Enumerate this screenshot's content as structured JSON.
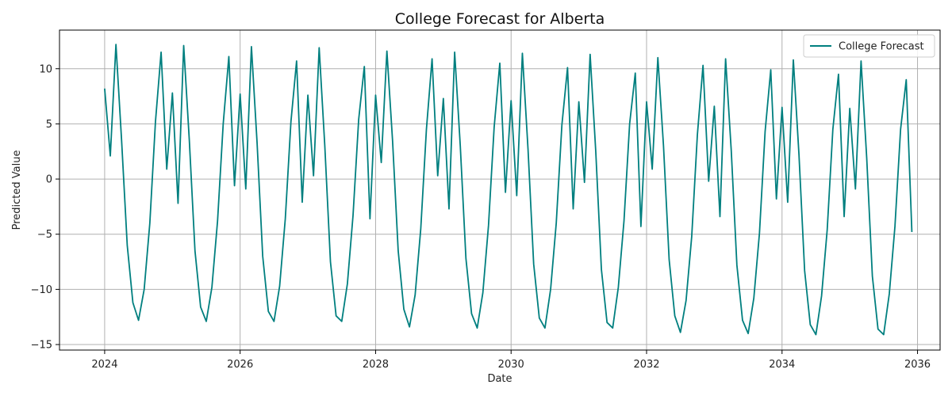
{
  "chart_data": {
    "type": "line",
    "title": "College Forecast for Alberta",
    "xlabel": "Date",
    "ylabel": "Predicted Value",
    "x_tick_labels": [
      "2024",
      "2026",
      "2028",
      "2030",
      "2032",
      "2034",
      "2036"
    ],
    "y_tick_labels": [
      "−15",
      "−10",
      "−5",
      "0",
      "5",
      "10"
    ],
    "xlim": [
      "2023-05-01",
      "2036-05-01"
    ],
    "ylim": [
      -15.5,
      13.5
    ],
    "grid": true,
    "legend_position": "top-right",
    "series_color": "#007f7f",
    "series": [
      {
        "name": "College Forecast",
        "dates": [
          "2024-01",
          "2024-02",
          "2024-03",
          "2024-04",
          "2024-05",
          "2024-06",
          "2024-07",
          "2024-08",
          "2024-09",
          "2024-10",
          "2024-11",
          "2024-12",
          "2025-01",
          "2025-02",
          "2025-03",
          "2025-04",
          "2025-05",
          "2025-06",
          "2025-07",
          "2025-08",
          "2025-09",
          "2025-10",
          "2025-11",
          "2025-12",
          "2026-01",
          "2026-02",
          "2026-03",
          "2026-04",
          "2026-05",
          "2026-06",
          "2026-07",
          "2026-08",
          "2026-09",
          "2026-10",
          "2026-11",
          "2026-12",
          "2027-01",
          "2027-02",
          "2027-03",
          "2027-04",
          "2027-05",
          "2027-06",
          "2027-07",
          "2027-08",
          "2027-09",
          "2027-10",
          "2027-11",
          "2027-12",
          "2028-01",
          "2028-02",
          "2028-03",
          "2028-04",
          "2028-05",
          "2028-06",
          "2028-07",
          "2028-08",
          "2028-09",
          "2028-10",
          "2028-11",
          "2028-12",
          "2029-01",
          "2029-02",
          "2029-03",
          "2029-04",
          "2029-05",
          "2029-06",
          "2029-07",
          "2029-08",
          "2029-09",
          "2029-10",
          "2029-11",
          "2029-12",
          "2030-01",
          "2030-02",
          "2030-03",
          "2030-04",
          "2030-05",
          "2030-06",
          "2030-07",
          "2030-08",
          "2030-09",
          "2030-10",
          "2030-11",
          "2030-12",
          "2031-01",
          "2031-02",
          "2031-03",
          "2031-04",
          "2031-05",
          "2031-06",
          "2031-07",
          "2031-08",
          "2031-09",
          "2031-10",
          "2031-11",
          "2031-12",
          "2032-01",
          "2032-02",
          "2032-03",
          "2032-04",
          "2032-05",
          "2032-06",
          "2032-07",
          "2032-08",
          "2032-09",
          "2032-10",
          "2032-11",
          "2032-12",
          "2033-01",
          "2033-02",
          "2033-03",
          "2033-04",
          "2033-05",
          "2033-06",
          "2033-07",
          "2033-08",
          "2033-09",
          "2033-10",
          "2033-11",
          "2033-12",
          "2034-01",
          "2034-02",
          "2034-03",
          "2034-04",
          "2034-05",
          "2034-06",
          "2034-07",
          "2034-08",
          "2034-09",
          "2034-10",
          "2034-11",
          "2034-12",
          "2035-01",
          "2035-02",
          "2035-03",
          "2035-04",
          "2035-05",
          "2035-06",
          "2035-07",
          "2035-08",
          "2035-09",
          "2035-10",
          "2035-11",
          "2035-12"
        ],
        "values": [
          8.2,
          2.1,
          12.2,
          3.5,
          -6.0,
          -11.2,
          -12.8,
          -10.0,
          -4.0,
          5.2,
          11.5,
          0.9,
          7.8,
          -2.2,
          12.1,
          3.5,
          -6.5,
          -11.6,
          -12.9,
          -9.8,
          -3.8,
          5.0,
          11.1,
          -0.6,
          7.7,
          -0.9,
          12.0,
          3.3,
          -7.0,
          -12.0,
          -12.9,
          -9.7,
          -3.6,
          5.2,
          10.7,
          -2.1,
          7.6,
          0.3,
          11.9,
          3.0,
          -7.5,
          -12.4,
          -12.9,
          -9.5,
          -3.3,
          5.4,
          10.2,
          -3.6,
          7.6,
          1.5,
          11.6,
          3.5,
          -6.5,
          -11.8,
          -13.4,
          -10.5,
          -4.5,
          4.5,
          10.9,
          0.3,
          7.3,
          -2.7,
          11.5,
          3.0,
          -7.2,
          -12.2,
          -13.5,
          -10.3,
          -4.2,
          4.7,
          10.5,
          -1.2,
          7.1,
          -1.5,
          11.4,
          2.7,
          -7.7,
          -12.6,
          -13.5,
          -10.0,
          -4.0,
          4.9,
          10.1,
          -2.7,
          7.0,
          -0.3,
          11.3,
          2.5,
          -8.2,
          -13.0,
          -13.5,
          -9.8,
          -3.8,
          5.0,
          9.6,
          -4.3,
          7.0,
          0.9,
          11.0,
          3.0,
          -7.3,
          -12.4,
          -13.9,
          -11.0,
          -5.2,
          4.0,
          10.3,
          -0.2,
          6.6,
          -3.4,
          10.9,
          2.6,
          -7.8,
          -12.8,
          -14.0,
          -10.8,
          -4.9,
          4.3,
          9.9,
          -1.8,
          6.5,
          -2.1,
          10.8,
          2.2,
          -8.3,
          -13.2,
          -14.1,
          -10.6,
          -4.6,
          4.5,
          9.5,
          -3.4,
          6.4,
          -0.9,
          10.7,
          1.9,
          -8.8,
          -13.6,
          -14.1,
          -10.4,
          -4.3,
          4.5,
          9.0,
          -4.8
        ]
      }
    ]
  }
}
